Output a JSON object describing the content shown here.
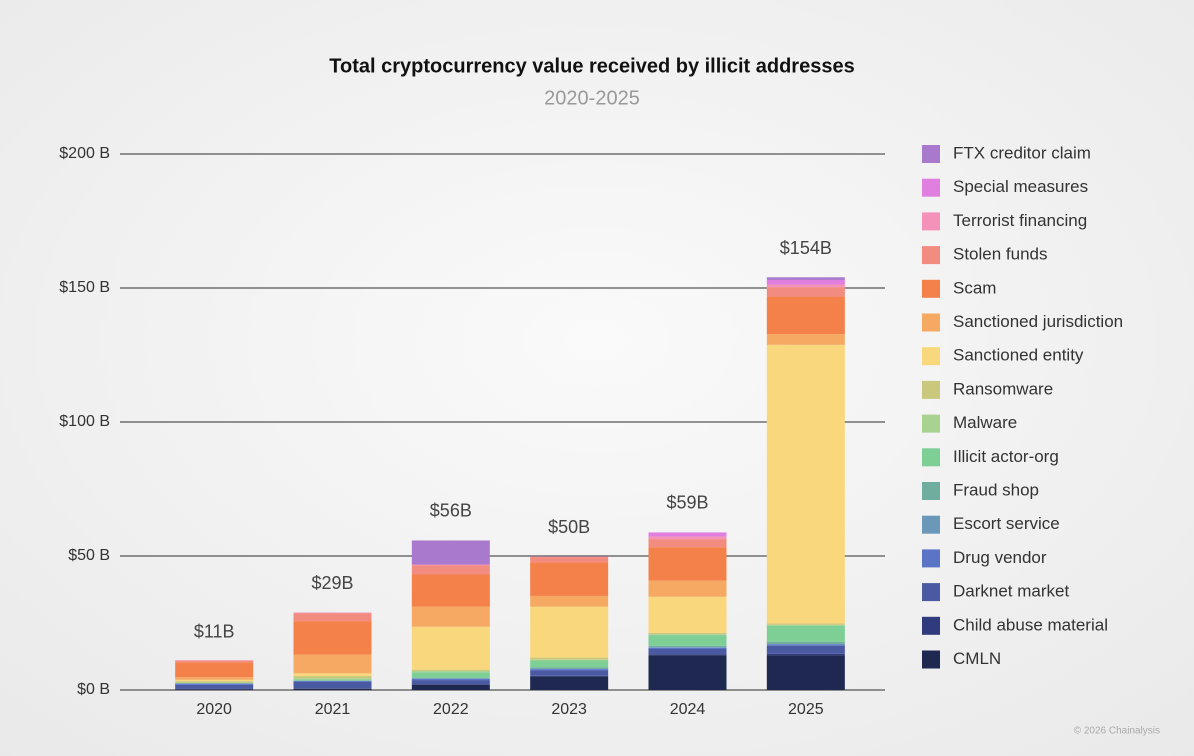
{
  "chart_data": {
    "type": "stacked-bar",
    "title": "Total cryptocurrency value received by illicit addresses",
    "subtitle": "2020-2025",
    "categories": [
      "2020",
      "2021",
      "2022",
      "2023",
      "2024",
      "2025"
    ],
    "ylim": [
      0,
      200
    ],
    "yticks": [
      {
        "value": 0,
        "label": "$0 B"
      },
      {
        "value": 50,
        "label": "$50 B"
      },
      {
        "value": 100,
        "label": "$100 B"
      },
      {
        "value": 150,
        "label": "$150 B"
      },
      {
        "value": 200,
        "label": "$200 B"
      }
    ],
    "grid": true,
    "legend": "right",
    "series": [
      {
        "name": "CMLN",
        "color": "#1e2850",
        "values": [
          0.3,
          0.5,
          2,
          5,
          13,
          13
        ]
      },
      {
        "name": "Child abuse material",
        "color": "#2f3b7c",
        "values": [
          0.1,
          0.1,
          0.2,
          0.3,
          0.3,
          0.5
        ]
      },
      {
        "name": "Darknet market",
        "color": "#4a5aa2",
        "values": [
          1.5,
          2.5,
          1.5,
          2,
          2,
          3
        ]
      },
      {
        "name": "Drug vendor",
        "color": "#5c74c6",
        "values": [
          0.5,
          0.3,
          0.5,
          0.5,
          0.5,
          0.5
        ]
      },
      {
        "name": "Escort service",
        "color": "#6b98b8",
        "values": [
          0,
          0,
          0.1,
          0.2,
          0.2,
          0.2
        ]
      },
      {
        "name": "Fraud shop",
        "color": "#6fae9f",
        "values": [
          0.1,
          0.2,
          0.3,
          0.5,
          0.5,
          0.8
        ]
      },
      {
        "name": "Illicit actor-org",
        "color": "#7dcf96",
        "values": [
          0.1,
          0.3,
          2,
          2.5,
          4,
          6
        ]
      },
      {
        "name": "Malware",
        "color": "#a9d18f",
        "values": [
          0.2,
          0.5,
          0.5,
          0.3,
          0.3,
          0.3
        ]
      },
      {
        "name": "Ransomware",
        "color": "#c9c87c",
        "values": [
          0.5,
          0.8,
          0.5,
          0.8,
          0.5,
          0.5
        ]
      },
      {
        "name": "Sanctioned entity",
        "color": "#f9d77c",
        "values": [
          0.5,
          1,
          16,
          19,
          13.5,
          104
        ]
      },
      {
        "name": "Sanctioned jurisdiction",
        "color": "#f6a962",
        "values": [
          1,
          7,
          7.5,
          4,
          6,
          4
        ]
      },
      {
        "name": "Scam",
        "color": "#f5814a",
        "values": [
          5.5,
          12.5,
          12,
          12.5,
          12.5,
          14
        ]
      },
      {
        "name": "Stolen funds",
        "color": "#f28b80",
        "values": [
          0.7,
          3,
          3.5,
          2,
          3,
          3.5
        ]
      },
      {
        "name": "Terrorist financing",
        "color": "#f592ba",
        "values": [
          0.1,
          0.2,
          0.2,
          0.2,
          1,
          1
        ]
      },
      {
        "name": "Special measures",
        "color": "#e07fe0",
        "values": [
          0,
          0,
          0,
          0,
          1.5,
          1.7
        ]
      },
      {
        "name": "FTX creditor claim",
        "color": "#a879cc",
        "values": [
          0,
          0,
          9,
          0,
          0,
          1
        ]
      }
    ],
    "totals": {
      "values": [
        11,
        29,
        56,
        50,
        59,
        154
      ],
      "value_labels": [
        "$11B",
        "$29B",
        "$56B",
        "$50B",
        "$59B",
        "$154B"
      ]
    },
    "footer": "© 2026 Chainalysis"
  }
}
